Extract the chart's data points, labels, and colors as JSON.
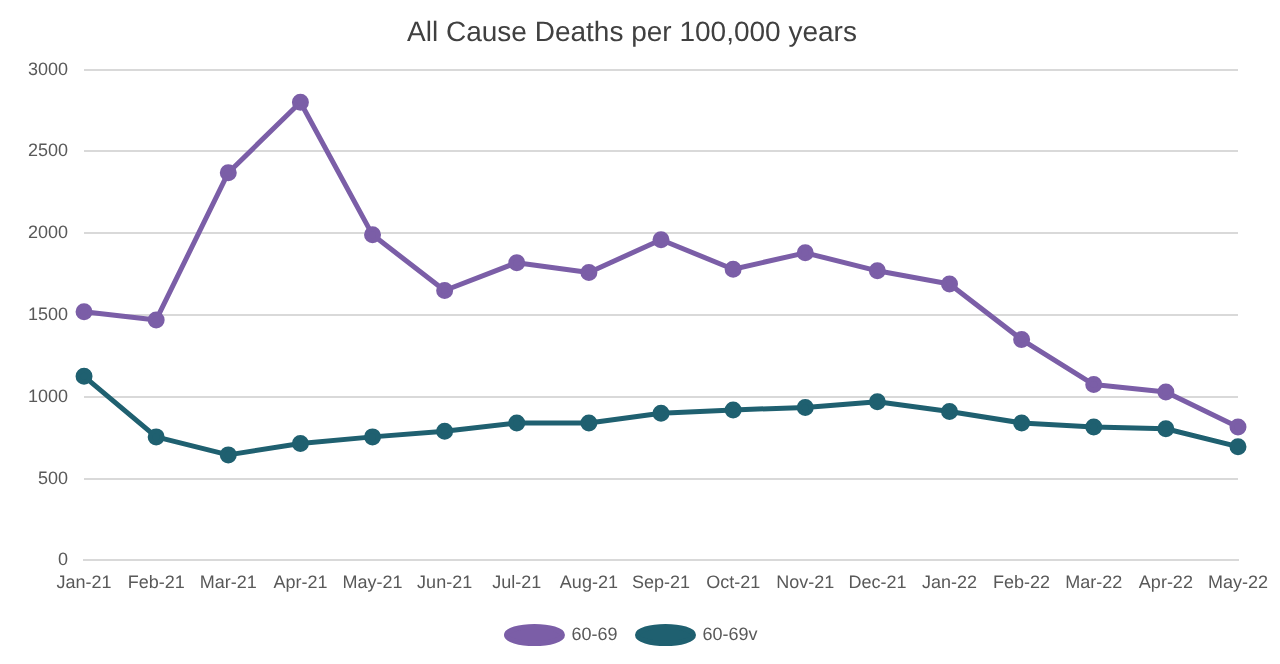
{
  "chart_data": {
    "type": "line",
    "title": "All Cause Deaths per 100,000 years",
    "categories": [
      "Jan-21",
      "Feb-21",
      "Mar-21",
      "Apr-21",
      "May-21",
      "Jun-21",
      "Jul-21",
      "Aug-21",
      "Sep-21",
      "Oct-21",
      "Nov-21",
      "Dec-21",
      "Jan-22",
      "Feb-22",
      "Mar-22",
      "Apr-22",
      "May-22"
    ],
    "series": [
      {
        "name": "60-69",
        "color": "#7b5ea7",
        "values": [
          1520,
          1470,
          2370,
          2800,
          1990,
          1650,
          1820,
          1760,
          1960,
          1780,
          1880,
          1770,
          1690,
          1350,
          1075,
          1030,
          815
        ]
      },
      {
        "name": "60-69v",
        "color": "#1f6070",
        "values": [
          1125,
          755,
          645,
          715,
          755,
          790,
          840,
          840,
          900,
          920,
          935,
          970,
          910,
          840,
          815,
          805,
          695
        ]
      }
    ],
    "ylim": [
      0,
      3000
    ],
    "yticks": [
      0,
      500,
      1000,
      1500,
      2000,
      2500,
      3000
    ],
    "grid": "y",
    "legend": "bottom",
    "marker": "circle",
    "line_style": "solid"
  }
}
